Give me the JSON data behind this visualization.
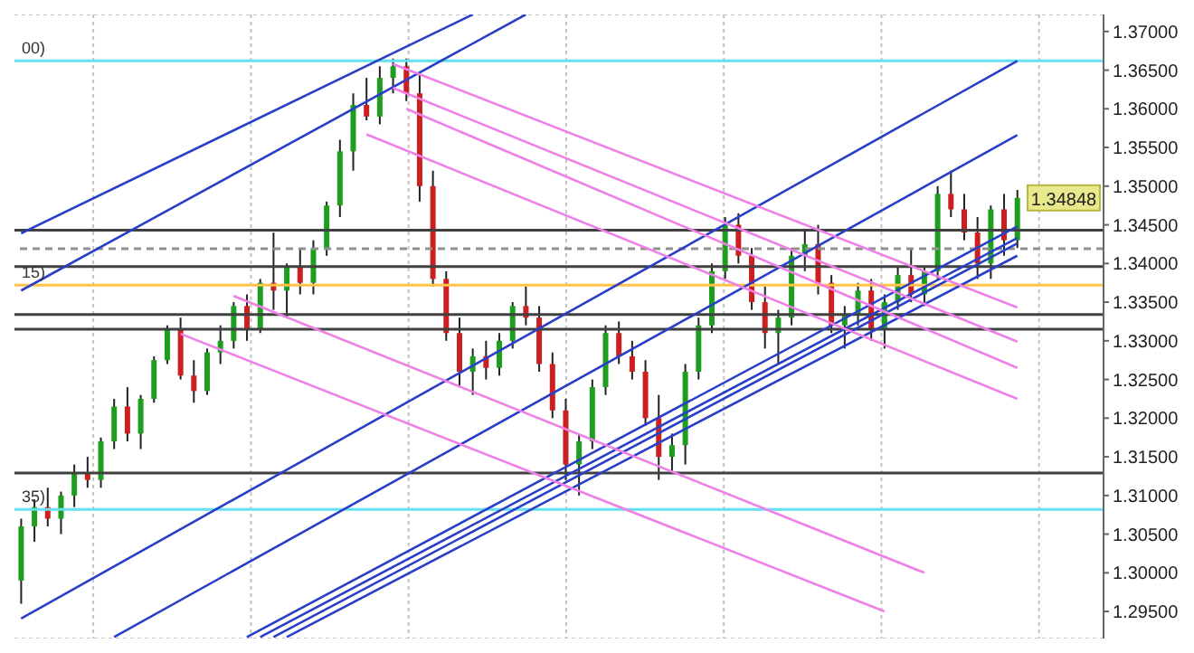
{
  "chart_data": {
    "type": "candlestick",
    "categories": [
      null,
      null,
      null,
      null,
      null,
      null,
      null,
      null,
      null,
      null,
      null,
      null,
      null,
      null,
      null,
      null,
      null,
      null,
      null,
      null,
      null,
      null,
      null,
      null,
      null,
      null,
      null,
      null,
      null,
      null,
      null,
      null,
      null,
      null,
      null,
      null,
      null,
      null,
      null,
      null,
      null,
      null,
      null,
      null,
      null,
      null,
      null,
      null,
      null,
      null,
      null,
      null,
      null,
      null,
      null,
      null,
      null,
      null,
      null,
      null,
      null,
      null,
      null,
      null,
      null,
      null,
      null,
      null,
      null,
      null,
      null,
      null,
      null,
      null,
      null,
      null
    ],
    "ohlc": [
      [
        1.299,
        1.307,
        1.296,
        1.306
      ],
      [
        1.306,
        1.3095,
        1.304,
        1.3085
      ],
      [
        1.3085,
        1.311,
        1.306,
        1.307
      ],
      [
        1.307,
        1.3105,
        1.305,
        1.31
      ],
      [
        1.31,
        1.314,
        1.3085,
        1.313
      ],
      [
        1.313,
        1.315,
        1.311,
        1.312
      ],
      [
        1.312,
        1.3175,
        1.311,
        1.317
      ],
      [
        1.317,
        1.3225,
        1.316,
        1.3215
      ],
      [
        1.3215,
        1.324,
        1.317,
        1.318
      ],
      [
        1.318,
        1.323,
        1.316,
        1.3225
      ],
      [
        1.3225,
        1.328,
        1.322,
        1.3275
      ],
      [
        1.3275,
        1.332,
        1.327,
        1.3315
      ],
      [
        1.3315,
        1.333,
        1.325,
        1.3255
      ],
      [
        1.3255,
        1.3275,
        1.322,
        1.3235
      ],
      [
        1.3235,
        1.329,
        1.323,
        1.3285
      ],
      [
        1.3285,
        1.332,
        1.327,
        1.33
      ],
      [
        1.33,
        1.335,
        1.329,
        1.3345
      ],
      [
        1.3345,
        1.336,
        1.33,
        1.3315
      ],
      [
        1.3315,
        1.338,
        1.331,
        1.3375
      ],
      [
        1.3375,
        1.344,
        1.334,
        1.3365
      ],
      [
        1.3365,
        1.34,
        1.333,
        1.3395
      ],
      [
        1.3395,
        1.342,
        1.336,
        1.3375
      ],
      [
        1.3375,
        1.343,
        1.336,
        1.342
      ],
      [
        1.342,
        1.348,
        1.341,
        1.3475
      ],
      [
        1.3475,
        1.356,
        1.346,
        1.3545
      ],
      [
        1.3545,
        1.362,
        1.352,
        1.3605
      ],
      [
        1.3605,
        1.364,
        1.3585,
        1.359
      ],
      [
        1.359,
        1.3655,
        1.358,
        1.364
      ],
      [
        1.364,
        1.3665,
        1.362,
        1.3655
      ],
      [
        1.3655,
        1.3665,
        1.361,
        1.362
      ],
      [
        1.362,
        1.3645,
        1.348,
        1.35
      ],
      [
        1.35,
        1.352,
        1.337,
        1.338
      ],
      [
        1.338,
        1.339,
        1.33,
        1.331
      ],
      [
        1.331,
        1.333,
        1.324,
        1.326
      ],
      [
        1.326,
        1.329,
        1.323,
        1.328
      ],
      [
        1.328,
        1.33,
        1.325,
        1.3265
      ],
      [
        1.3265,
        1.331,
        1.3255,
        1.33
      ],
      [
        1.33,
        1.335,
        1.329,
        1.3345
      ],
      [
        1.3345,
        1.337,
        1.332,
        1.333
      ],
      [
        1.333,
        1.3345,
        1.326,
        1.327
      ],
      [
        1.327,
        1.3285,
        1.32,
        1.321
      ],
      [
        1.321,
        1.3225,
        1.312,
        1.314
      ],
      [
        1.314,
        1.318,
        1.31,
        1.317
      ],
      [
        1.317,
        1.325,
        1.316,
        1.324
      ],
      [
        1.324,
        1.332,
        1.323,
        1.331
      ],
      [
        1.331,
        1.3325,
        1.327,
        1.328
      ],
      [
        1.328,
        1.33,
        1.325,
        1.326
      ],
      [
        1.326,
        1.3275,
        1.319,
        1.32
      ],
      [
        1.32,
        1.323,
        1.312,
        1.315
      ],
      [
        1.315,
        1.318,
        1.313,
        1.3165
      ],
      [
        1.3165,
        1.327,
        1.314,
        1.326
      ],
      [
        1.326,
        1.333,
        1.325,
        1.332
      ],
      [
        1.332,
        1.34,
        1.331,
        1.339
      ],
      [
        1.339,
        1.346,
        1.338,
        1.345
      ],
      [
        1.345,
        1.3465,
        1.34,
        1.341
      ],
      [
        1.341,
        1.342,
        1.334,
        1.335
      ],
      [
        1.335,
        1.337,
        1.329,
        1.331
      ],
      [
        1.331,
        1.334,
        1.327,
        1.333
      ],
      [
        1.333,
        1.342,
        1.332,
        1.341
      ],
      [
        1.341,
        1.3445,
        1.339,
        1.3425
      ],
      [
        1.3425,
        1.345,
        1.336,
        1.3375
      ],
      [
        1.3375,
        1.3385,
        1.331,
        1.332
      ],
      [
        1.332,
        1.3345,
        1.329,
        1.3335
      ],
      [
        1.3335,
        1.3375,
        1.332,
        1.3365
      ],
      [
        1.3365,
        1.338,
        1.33,
        1.3315
      ],
      [
        1.3315,
        1.336,
        1.329,
        1.335
      ],
      [
        1.335,
        1.3395,
        1.334,
        1.3385
      ],
      [
        1.3385,
        1.342,
        1.335,
        1.336
      ],
      [
        1.336,
        1.3395,
        1.3345,
        1.339
      ],
      [
        1.339,
        1.35,
        1.338,
        1.349
      ],
      [
        1.349,
        1.352,
        1.346,
        1.347
      ],
      [
        1.347,
        1.349,
        1.343,
        1.344
      ],
      [
        1.344,
        1.346,
        1.338,
        1.34
      ],
      [
        1.34,
        1.3475,
        1.338,
        1.347
      ],
      [
        1.347,
        1.349,
        1.341,
        1.343
      ],
      [
        1.343,
        1.3495,
        1.342,
        1.34848
      ]
    ],
    "colors": [
      "#1e9e1e",
      "#1e9e1e",
      "#cc1f1f",
      "#1e9e1e",
      "#1e9e1e",
      "#cc1f1f",
      "#1e9e1e",
      "#1e9e1e",
      "#cc1f1f",
      "#1e9e1e",
      "#1e9e1e",
      "#1e9e1e",
      "#cc1f1f",
      "#cc1f1f",
      "#1e9e1e",
      "#1e9e1e",
      "#1e9e1e",
      "#cc1f1f",
      "#1e9e1e",
      "#cc1f1f",
      "#1e9e1e",
      "#cc1f1f",
      "#1e9e1e",
      "#1e9e1e",
      "#1e9e1e",
      "#1e9e1e",
      "#cc1f1f",
      "#1e9e1e",
      "#1e9e1e",
      "#cc1f1f",
      "#cc1f1f",
      "#cc1f1f",
      "#cc1f1f",
      "#cc1f1f",
      "#1e9e1e",
      "#cc1f1f",
      "#1e9e1e",
      "#1e9e1e",
      "#cc1f1f",
      "#cc1f1f",
      "#cc1f1f",
      "#cc1f1f",
      "#1e9e1e",
      "#1e9e1e",
      "#1e9e1e",
      "#cc1f1f",
      "#cc1f1f",
      "#cc1f1f",
      "#cc1f1f",
      "#1e9e1e",
      "#1e9e1e",
      "#1e9e1e",
      "#1e9e1e",
      "#1e9e1e",
      "#cc1f1f",
      "#cc1f1f",
      "#cc1f1f",
      "#1e9e1e",
      "#1e9e1e",
      "#1e9e1e",
      "#cc1f1f",
      "#cc1f1f",
      "#1e9e1e",
      "#1e9e1e",
      "#cc1f1f",
      "#1e9e1e",
      "#1e9e1e",
      "#cc1f1f",
      "#1e9e1e",
      "#1e9e1e",
      "#cc1f1f",
      "#cc1f1f",
      "#cc1f1f",
      "#1e9e1e",
      "#cc1f1f",
      "#1e9e1e"
    ],
    "series": [
      {
        "type": "line",
        "color": "#2a3fc8",
        "values": [
          1.3439,
          null,
          null,
          null,
          null,
          null,
          null,
          null,
          null,
          null,
          null,
          null,
          null,
          null,
          null,
          null,
          null,
          null,
          null,
          null,
          null,
          null,
          null,
          null,
          null,
          null,
          null,
          null,
          null,
          null,
          null,
          null,
          null,
          null,
          1.3722,
          null,
          null,
          null,
          null,
          null,
          null,
          null,
          null,
          null,
          null,
          null,
          null,
          null,
          null,
          null,
          null,
          null,
          null,
          null,
          null,
          null,
          null,
          null,
          null,
          null,
          null,
          null,
          null,
          null,
          null,
          null,
          null,
          null,
          null,
          null,
          null,
          null,
          null,
          null,
          null,
          null
        ]
      },
      {
        "type": "line",
        "color": "#2a3fc8",
        "values": [
          1.3365,
          null,
          null,
          null,
          null,
          null,
          null,
          null,
          null,
          null,
          null,
          null,
          null,
          null,
          null,
          null,
          null,
          null,
          null,
          null,
          null,
          null,
          null,
          null,
          null,
          null,
          null,
          null,
          null,
          null,
          null,
          null,
          null,
          null,
          null,
          null,
          null,
          null,
          1.3722,
          null,
          null,
          null,
          null,
          null,
          null,
          null,
          null,
          null,
          null,
          null,
          null,
          null,
          null,
          null,
          null,
          null,
          null,
          null,
          null,
          null,
          null,
          null,
          null,
          null,
          null,
          null,
          null,
          null,
          null,
          null,
          null,
          null,
          null,
          null,
          null,
          null
        ]
      },
      {
        "type": "line",
        "color": "#2a3fc8",
        "values": [
          1.2941,
          null,
          null,
          null,
          null,
          null,
          null,
          null,
          null,
          null,
          null,
          null,
          null,
          null,
          null,
          null,
          null,
          null,
          null,
          null,
          null,
          null,
          null,
          null,
          null,
          null,
          null,
          null,
          null,
          null,
          null,
          null,
          null,
          null,
          null,
          null,
          null,
          null,
          null,
          null,
          null,
          null,
          null,
          null,
          null,
          null,
          null,
          null,
          null,
          null,
          null,
          null,
          null,
          null,
          null,
          null,
          null,
          null,
          null,
          null,
          null,
          null,
          null,
          null,
          null,
          null,
          null,
          null,
          null,
          null,
          null,
          null,
          null,
          null,
          null,
          1.3662
        ]
      },
      {
        "type": "line",
        "color": "#2a3fc8",
        "values": [
          null,
          null,
          null,
          null,
          null,
          null,
          null,
          1.2917,
          null,
          null,
          null,
          null,
          null,
          null,
          null,
          null,
          null,
          null,
          null,
          null,
          null,
          null,
          null,
          null,
          null,
          null,
          null,
          null,
          null,
          null,
          null,
          null,
          null,
          null,
          null,
          null,
          null,
          null,
          null,
          null,
          null,
          null,
          null,
          null,
          null,
          null,
          null,
          null,
          null,
          null,
          null,
          null,
          null,
          null,
          null,
          null,
          null,
          null,
          null,
          null,
          null,
          null,
          null,
          null,
          null,
          null,
          null,
          null,
          null,
          null,
          null,
          null,
          null,
          null,
          null,
          1.3566
        ]
      },
      {
        "type": "line",
        "color": "#2a3fc8",
        "values": [
          null,
          null,
          null,
          null,
          null,
          null,
          null,
          null,
          null,
          null,
          null,
          null,
          null,
          null,
          null,
          null,
          null,
          1.2917,
          null,
          null,
          null,
          null,
          null,
          null,
          null,
          null,
          null,
          null,
          null,
          null,
          null,
          null,
          null,
          null,
          null,
          null,
          null,
          null,
          null,
          null,
          null,
          null,
          null,
          null,
          null,
          null,
          null,
          null,
          null,
          null,
          null,
          null,
          null,
          null,
          null,
          null,
          null,
          null,
          null,
          null,
          null,
          null,
          null,
          null,
          null,
          null,
          null,
          null,
          null,
          null,
          null,
          null,
          null,
          null,
          null,
          1.3448
        ]
      },
      {
        "type": "line",
        "color": "#2a3fc8",
        "values": [
          null,
          null,
          null,
          null,
          null,
          null,
          null,
          null,
          null,
          null,
          null,
          null,
          null,
          null,
          null,
          null,
          null,
          null,
          1.2917,
          null,
          null,
          null,
          null,
          null,
          null,
          null,
          null,
          null,
          null,
          null,
          null,
          null,
          null,
          null,
          null,
          null,
          null,
          null,
          null,
          null,
          null,
          null,
          null,
          null,
          null,
          null,
          null,
          null,
          null,
          null,
          null,
          null,
          null,
          null,
          null,
          null,
          null,
          null,
          null,
          null,
          null,
          null,
          null,
          null,
          null,
          null,
          null,
          null,
          null,
          null,
          null,
          null,
          null,
          null,
          null,
          1.3433
        ]
      },
      {
        "type": "line",
        "color": "#2a3fc8",
        "values": [
          null,
          null,
          null,
          null,
          null,
          null,
          null,
          null,
          null,
          null,
          null,
          null,
          null,
          null,
          null,
          null,
          null,
          null,
          null,
          1.2917,
          null,
          null,
          null,
          null,
          null,
          null,
          null,
          null,
          null,
          null,
          null,
          null,
          null,
          null,
          null,
          null,
          null,
          null,
          null,
          null,
          null,
          null,
          null,
          null,
          null,
          null,
          null,
          null,
          null,
          null,
          null,
          null,
          null,
          null,
          null,
          null,
          null,
          null,
          null,
          null,
          null,
          null,
          null,
          null,
          null,
          null,
          null,
          null,
          null,
          null,
          null,
          null,
          null,
          null,
          null,
          1.3426
        ]
      },
      {
        "type": "line",
        "color": "#2a3fc8",
        "values": [
          null,
          null,
          null,
          null,
          null,
          null,
          null,
          null,
          null,
          null,
          null,
          null,
          null,
          null,
          null,
          null,
          null,
          null,
          null,
          null,
          1.2917,
          null,
          null,
          null,
          null,
          null,
          null,
          null,
          null,
          null,
          null,
          null,
          null,
          null,
          null,
          null,
          null,
          null,
          null,
          null,
          null,
          null,
          null,
          null,
          null,
          null,
          null,
          null,
          null,
          null,
          null,
          null,
          null,
          null,
          null,
          null,
          null,
          null,
          null,
          null,
          null,
          null,
          null,
          null,
          null,
          null,
          null,
          null,
          null,
          null,
          null,
          null,
          null,
          null,
          null,
          1.341
        ]
      },
      {
        "type": "line",
        "color": "#ee80e8",
        "values": [
          null,
          null,
          null,
          null,
          null,
          null,
          null,
          null,
          null,
          null,
          null,
          null,
          null,
          null,
          null,
          null,
          null,
          null,
          null,
          null,
          null,
          null,
          null,
          null,
          null,
          null,
          null,
          null,
          1.3658,
          null,
          null,
          null,
          null,
          null,
          null,
          null,
          null,
          null,
          null,
          null,
          null,
          null,
          null,
          null,
          null,
          null,
          null,
          null,
          null,
          null,
          null,
          null,
          null,
          null,
          null,
          null,
          null,
          null,
          null,
          null,
          null,
          null,
          null,
          null,
          null,
          null,
          null,
          null,
          null,
          null,
          null,
          null,
          null,
          null,
          null,
          1.3343
        ]
      },
      {
        "type": "line",
        "color": "#ee80e8",
        "values": [
          null,
          null,
          null,
          null,
          null,
          null,
          null,
          null,
          null,
          null,
          null,
          null,
          null,
          null,
          null,
          null,
          null,
          null,
          null,
          null,
          null,
          null,
          null,
          null,
          null,
          null,
          null,
          null,
          1.3627,
          null,
          null,
          null,
          null,
          null,
          null,
          null,
          null,
          null,
          null,
          null,
          null,
          null,
          null,
          null,
          null,
          null,
          null,
          null,
          null,
          null,
          null,
          null,
          null,
          null,
          null,
          null,
          null,
          null,
          null,
          null,
          null,
          null,
          null,
          null,
          null,
          null,
          null,
          null,
          null,
          null,
          null,
          null,
          null,
          null,
          null,
          1.3299
        ]
      },
      {
        "type": "line",
        "color": "#ee80e8",
        "values": [
          null,
          null,
          null,
          null,
          null,
          null,
          null,
          null,
          null,
          null,
          null,
          null,
          null,
          null,
          null,
          null,
          null,
          null,
          null,
          null,
          null,
          null,
          null,
          null,
          null,
          null,
          null,
          null,
          null,
          1.36,
          null,
          null,
          null,
          null,
          null,
          null,
          null,
          null,
          null,
          null,
          null,
          null,
          null,
          null,
          null,
          null,
          null,
          null,
          null,
          null,
          null,
          null,
          null,
          null,
          null,
          null,
          null,
          null,
          null,
          null,
          null,
          null,
          null,
          null,
          null,
          null,
          null,
          null,
          null,
          null,
          null,
          null,
          null,
          null,
          null,
          1.3265
        ]
      },
      {
        "type": "line",
        "color": "#ee80e8",
        "values": [
          null,
          null,
          null,
          null,
          null,
          null,
          null,
          null,
          null,
          null,
          null,
          null,
          null,
          null,
          null,
          null,
          null,
          null,
          null,
          null,
          null,
          null,
          null,
          null,
          null,
          null,
          1.3567,
          null,
          null,
          null,
          null,
          null,
          null,
          null,
          null,
          null,
          null,
          null,
          null,
          null,
          null,
          null,
          null,
          null,
          null,
          null,
          null,
          null,
          null,
          null,
          null,
          null,
          null,
          null,
          null,
          null,
          null,
          null,
          null,
          null,
          null,
          null,
          null,
          null,
          null,
          null,
          null,
          null,
          null,
          null,
          null,
          null,
          null,
          null,
          null,
          1.3225
        ]
      },
      {
        "type": "line",
        "color": "#ee80e8",
        "values": [
          null,
          null,
          null,
          null,
          null,
          null,
          null,
          null,
          null,
          null,
          null,
          null,
          1.3309,
          null,
          null,
          null,
          null,
          null,
          null,
          null,
          null,
          null,
          null,
          null,
          null,
          null,
          null,
          null,
          null,
          null,
          null,
          null,
          null,
          null,
          null,
          null,
          null,
          null,
          null,
          null,
          null,
          null,
          null,
          null,
          null,
          null,
          null,
          null,
          null,
          null,
          null,
          null,
          null,
          null,
          null,
          null,
          null,
          null,
          null,
          null,
          null,
          null,
          null,
          null,
          null,
          1.295,
          null,
          null,
          null,
          null,
          null,
          null,
          null,
          null,
          null,
          null
        ]
      },
      {
        "type": "line",
        "color": "#ee80e8",
        "values": [
          null,
          null,
          null,
          null,
          null,
          null,
          null,
          null,
          null,
          null,
          null,
          null,
          null,
          null,
          null,
          null,
          1.3358,
          null,
          null,
          null,
          null,
          null,
          null,
          null,
          null,
          null,
          null,
          null,
          null,
          null,
          null,
          null,
          null,
          null,
          null,
          null,
          null,
          null,
          null,
          null,
          null,
          null,
          null,
          null,
          null,
          null,
          null,
          null,
          null,
          null,
          null,
          null,
          null,
          null,
          null,
          null,
          null,
          null,
          null,
          null,
          null,
          null,
          null,
          null,
          null,
          null,
          null,
          null,
          1.3,
          null,
          null,
          null,
          null,
          null,
          null,
          null
        ]
      }
    ],
    "ylim": [
      1.2915,
      1.3722
    ],
    "yticks": [
      {
        "value": 1.295,
        "label": "1.29500"
      },
      {
        "value": 1.3,
        "label": "1.30000"
      },
      {
        "value": 1.305,
        "label": "1.30500"
      },
      {
        "value": 1.31,
        "label": "1.31000"
      },
      {
        "value": 1.315,
        "label": "1.31500"
      },
      {
        "value": 1.32,
        "label": "1.32000"
      },
      {
        "value": 1.325,
        "label": "1.32500"
      },
      {
        "value": 1.33,
        "label": "1.33000"
      },
      {
        "value": 1.335,
        "label": "1.33500"
      },
      {
        "value": 1.34,
        "label": "1.34000"
      },
      {
        "value": 1.345,
        "label": "1.34500"
      },
      {
        "value": 1.35,
        "label": "1.35000"
      },
      {
        "value": 1.355,
        "label": "1.35500"
      },
      {
        "value": 1.36,
        "label": "1.36000"
      },
      {
        "value": 1.365,
        "label": "1.36500"
      },
      {
        "value": 1.37,
        "label": "1.37000"
      }
    ],
    "ref_lines": [
      {
        "axis": "y",
        "value": 1.3662,
        "color": "#66dff0"
      },
      {
        "axis": "y",
        "value": 1.3443,
        "color": "#404040"
      },
      {
        "axis": "y",
        "value": 1.3419,
        "color": "#909090",
        "line_style": "dashed"
      },
      {
        "axis": "y",
        "value": 1.3396,
        "color": "#404040"
      },
      {
        "axis": "y",
        "value": 1.3372,
        "color": "#ffc24a"
      },
      {
        "axis": "y",
        "value": 1.3334,
        "color": "#404040"
      },
      {
        "axis": "y",
        "value": 1.3315,
        "color": "#404040"
      },
      {
        "axis": "y",
        "value": 1.3129,
        "color": "#404040"
      },
      {
        "axis": "y",
        "value": 1.3082,
        "color": "#66dff0"
      }
    ],
    "annotations": [
      {
        "text": "1.34848",
        "y": 1.34848
      },
      {
        "text": "00)",
        "y": 1.3662
      },
      {
        "text": "15)",
        "y": 1.3372
      },
      {
        "text": "35)",
        "y": 1.3082
      }
    ],
    "grid": true,
    "tick_labels": "y"
  }
}
